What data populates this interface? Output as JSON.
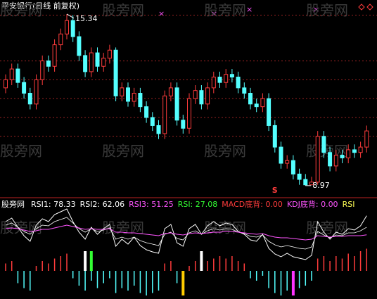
{
  "chart_data": [
    {
      "type": "candlestick",
      "title": "平安银行(日线 前复权)",
      "watermark": "股旁网",
      "annotations": [
        "15.34",
        "8.97",
        "S"
      ],
      "ylim": [
        8.6,
        15.6
      ],
      "yticks": [
        15.3,
        13.6,
        12.9,
        12.2,
        11.5,
        10.8
      ],
      "grid": true,
      "up_color": "#ff3c3c",
      "down_color": "#54ffff",
      "open": [
        12.6,
        12.9,
        13.3,
        12.8,
        12.4,
        12.0,
        12.9,
        13.6,
        13.4,
        14.2,
        14.6,
        15.1,
        14.5,
        13.8,
        13.2,
        13.9,
        13.4,
        13.7,
        14.0,
        12.3,
        12.6,
        12.1,
        12.4,
        11.9,
        11.5,
        11.2,
        10.9,
        12.3,
        12.6,
        11.4,
        11.1,
        12.2,
        12.5,
        12.0,
        12.6,
        13.0,
        12.8,
        13.1,
        13.0,
        12.6,
        12.4,
        12.0,
        11.9,
        12.2,
        11.2,
        10.4,
        9.8,
        9.9,
        9.4,
        9.2,
        9.0,
        9.1,
        10.8,
        10.2,
        9.7,
        10.1,
        10.0,
        10.3,
        10.2,
        10.4
      ],
      "close": [
        12.9,
        13.3,
        12.8,
        12.4,
        12.0,
        12.9,
        13.6,
        13.4,
        14.2,
        14.6,
        15.1,
        14.5,
        13.8,
        13.2,
        13.9,
        13.4,
        13.7,
        14.0,
        12.3,
        12.6,
        12.1,
        12.4,
        11.9,
        11.5,
        11.2,
        10.9,
        12.3,
        12.6,
        11.4,
        11.1,
        12.2,
        12.5,
        12.0,
        12.6,
        13.0,
        12.8,
        13.1,
        13.0,
        12.6,
        12.4,
        12.0,
        11.9,
        12.2,
        11.2,
        10.4,
        9.8,
        9.9,
        9.4,
        9.2,
        9.0,
        9.1,
        10.8,
        10.2,
        9.7,
        10.1,
        10.0,
        10.3,
        10.2,
        10.4,
        11.0
      ],
      "high": [
        13.1,
        13.5,
        13.5,
        13.0,
        12.6,
        13.1,
        13.8,
        13.8,
        14.4,
        14.8,
        15.34,
        15.3,
        14.7,
        14.0,
        14.1,
        14.1,
        13.9,
        14.2,
        14.1,
        12.8,
        12.8,
        12.6,
        12.6,
        12.1,
        11.7,
        11.4,
        12.5,
        12.8,
        12.8,
        11.6,
        12.4,
        12.7,
        12.7,
        12.8,
        13.2,
        13.2,
        13.3,
        13.3,
        13.2,
        12.8,
        12.6,
        12.2,
        12.4,
        12.4,
        11.4,
        10.6,
        10.1,
        10.1,
        9.6,
        9.4,
        9.3,
        11.0,
        11.0,
        10.4,
        10.3,
        10.3,
        10.5,
        10.5,
        10.6,
        11.2
      ],
      "low": [
        12.4,
        12.7,
        12.6,
        12.2,
        11.8,
        11.8,
        12.7,
        13.2,
        13.2,
        14.0,
        14.4,
        14.3,
        13.6,
        13.0,
        13.0,
        13.2,
        13.2,
        13.5,
        12.1,
        12.1,
        11.9,
        11.9,
        11.7,
        11.3,
        11.0,
        10.7,
        10.7,
        12.1,
        11.2,
        10.9,
        10.9,
        12.0,
        11.8,
        11.8,
        12.4,
        12.6,
        12.6,
        12.8,
        12.4,
        12.2,
        11.8,
        11.7,
        11.7,
        11.0,
        10.2,
        9.6,
        9.6,
        9.2,
        9.0,
        8.97,
        9.0,
        9.0,
        10.0,
        9.5,
        9.5,
        9.8,
        9.8,
        10.0,
        10.0,
        10.2
      ]
    },
    {
      "type": "line",
      "watermark": "股旁网",
      "ylim": [
        0,
        100
      ],
      "series": [
        {
          "name": "RSI1: 78.33",
          "color": "#ffffff",
          "values": [
            70,
            75,
            62,
            50,
            42,
            65,
            74,
            70,
            80,
            84,
            88,
            70,
            55,
            45,
            62,
            52,
            60,
            66,
            35,
            45,
            38,
            48,
            36,
            30,
            27,
            25,
            60,
            66,
            40,
            35,
            60,
            66,
            52,
            64,
            70,
            64,
            68,
            66,
            56,
            52,
            44,
            42,
            52,
            32,
            24,
            20,
            25,
            20,
            18,
            16,
            22,
            70,
            55,
            45,
            55,
            52,
            60,
            58,
            64,
            78.33
          ]
        },
        {
          "name": "RSI2: 62.06",
          "color": "#ffffff",
          "values": [
            65,
            68,
            62,
            56,
            52,
            60,
            65,
            64,
            70,
            73,
            76,
            68,
            60,
            55,
            60,
            56,
            58,
            61,
            45,
            48,
            45,
            48,
            43,
            40,
            38,
            36,
            52,
            55,
            46,
            44,
            54,
            57,
            52,
            57,
            60,
            58,
            60,
            59,
            55,
            53,
            49,
            48,
            51,
            42,
            37,
            34,
            36,
            34,
            32,
            31,
            34,
            56,
            51,
            47,
            51,
            50,
            54,
            54,
            57,
            62.06
          ]
        },
        {
          "name": "RSI3: 51.25",
          "color": "#ff55ff",
          "values": [
            60,
            61,
            60,
            58,
            56,
            57,
            59,
            59,
            61,
            63,
            65,
            63,
            61,
            59,
            60,
            59,
            59,
            60,
            55,
            55,
            54,
            54,
            53,
            52,
            51,
            50,
            53,
            54,
            52,
            51,
            53,
            54,
            53,
            54,
            55,
            55,
            56,
            56,
            55,
            54,
            53,
            52,
            53,
            50,
            48,
            47,
            47,
            46,
            45,
            44,
            45,
            50,
            49,
            48,
            49,
            49,
            50,
            50,
            50,
            51.25
          ]
        }
      ],
      "indicators": [
        {
          "text": "RSI: 27.08",
          "color": "#33ff33"
        },
        {
          "text": "MACD底背: 0.00",
          "color": "#ff3c3c"
        },
        {
          "text": "KDJ底背: 0.00",
          "color": "#ff55ff"
        },
        {
          "text": "RSI",
          "color": "#ffff55"
        }
      ],
      "hist": {
        "pos_color": "#ff3c3c",
        "neg_color": "#54ffff",
        "values": [
          0.3,
          0.4,
          -0.5,
          -0.7,
          -0.8,
          0.2,
          0.4,
          0.3,
          0.5,
          0.6,
          0.7,
          -0.3,
          -0.6,
          -0.8,
          -0.4,
          -0.7,
          -0.5,
          -0.3,
          -0.9,
          -0.7,
          -0.8,
          -0.6,
          -0.9,
          -1,
          -0.9,
          -0.8,
          0.3,
          0.4,
          -0.5,
          -0.6,
          0.2,
          0.4,
          0.2,
          0.4,
          0.5,
          0.6,
          0.5,
          0.6,
          0.4,
          0.3,
          -0.3,
          -0.4,
          -0.2,
          -0.7,
          -0.9,
          -1,
          -0.8,
          -0.9,
          -0.7,
          -0.6,
          -0.4,
          0.5,
          0.6,
          0.4,
          0.6,
          0.5,
          0.7,
          0.6,
          0.8,
          0.9
        ]
      },
      "signals": {
        "values": [
          null,
          null,
          null,
          null,
          null,
          null,
          null,
          null,
          null,
          null,
          null,
          null,
          null,
          0.8,
          0.8,
          null,
          null,
          null,
          null,
          null,
          null,
          null,
          null,
          null,
          null,
          null,
          null,
          null,
          null,
          -1,
          null,
          null,
          0.8,
          null,
          null,
          null,
          null,
          null,
          null,
          null,
          null,
          null,
          null,
          null,
          null,
          null,
          null,
          -1,
          null,
          null,
          null,
          null,
          null,
          null,
          null,
          null,
          null,
          null,
          null,
          null
        ],
        "colors": [
          null,
          null,
          null,
          null,
          null,
          null,
          null,
          null,
          null,
          null,
          null,
          null,
          null,
          "#ffffff",
          "#33ff33",
          null,
          null,
          null,
          null,
          null,
          null,
          null,
          null,
          null,
          null,
          null,
          null,
          null,
          null,
          "#ffcc00",
          null,
          null,
          "#ffffff",
          null,
          null,
          null,
          null,
          null,
          null,
          null,
          null,
          null,
          null,
          null,
          null,
          null,
          null,
          "#ff33ff",
          null,
          null,
          null,
          null,
          null,
          null,
          null,
          null,
          null,
          null,
          null,
          null
        ]
      }
    }
  ]
}
